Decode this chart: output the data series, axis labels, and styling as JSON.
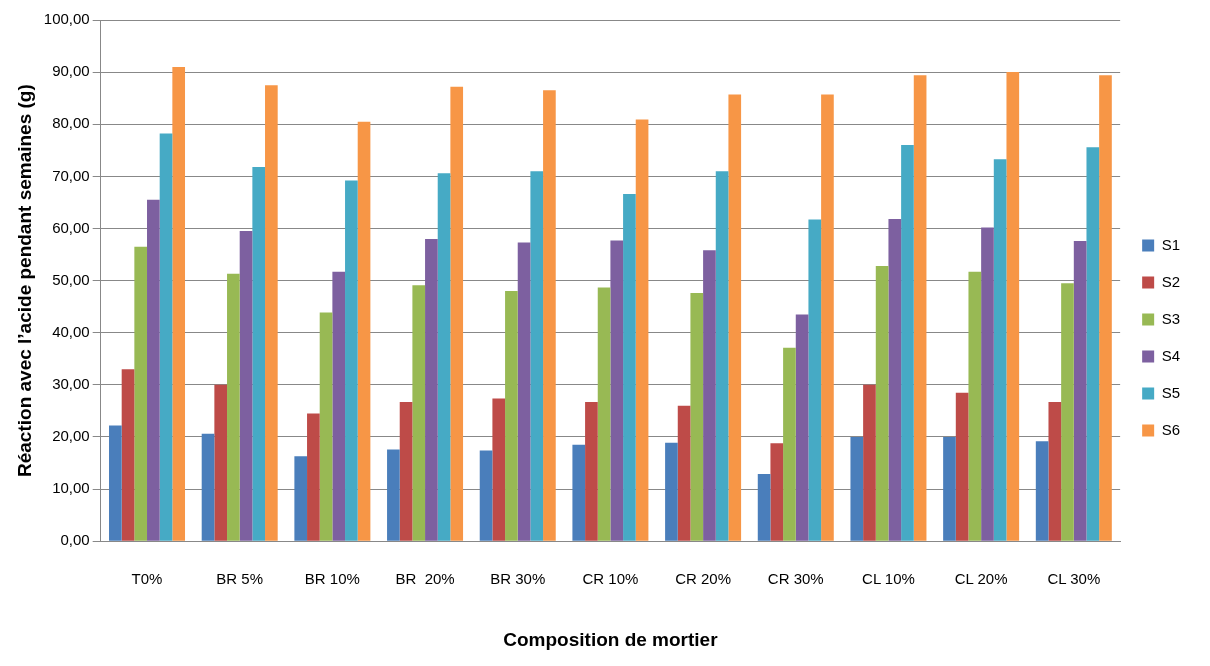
{
  "chart_data": {
    "type": "bar",
    "xlabel": "Composition de mortier",
    "ylabel": "Réaction avec l’acide pendant semaines (g)",
    "categories": [
      "T0%",
      "BR 5%",
      "BR 10%",
      "BR  20%",
      "BR 30%",
      "CR 10%",
      "CR 20%",
      "CR 30%",
      "CL 10%",
      "CL 20%",
      "CL 30%"
    ],
    "series": [
      {
        "name": "S1",
        "color": "#4a7ebb",
        "values": [
          22.2,
          20.6,
          16.3,
          17.6,
          17.4,
          18.5,
          18.9,
          12.9,
          20,
          20,
          19.2
        ]
      },
      {
        "name": "S2",
        "color": "#be4b48",
        "values": [
          33,
          30,
          24.5,
          26.7,
          27.4,
          26.7,
          26,
          18.8,
          30,
          28.5,
          26.7
        ]
      },
      {
        "name": "S3",
        "color": "#98b954",
        "values": [
          56.5,
          51.3,
          43.9,
          49.1,
          48,
          48.7,
          47.6,
          37.1,
          52.8,
          51.7,
          49.5
        ]
      },
      {
        "name": "S4",
        "color": "#7d60a0",
        "values": [
          65.5,
          59.5,
          51.7,
          58,
          57.3,
          57.7,
          55.8,
          43.5,
          61.8,
          60.2,
          57.6
        ]
      },
      {
        "name": "S5",
        "color": "#46aac5",
        "values": [
          78.2,
          71.8,
          69.2,
          70.6,
          71,
          66.6,
          71,
          61.7,
          76,
          73.3,
          75.6
        ]
      },
      {
        "name": "S6",
        "color": "#f79646",
        "values": [
          91,
          87.5,
          80.5,
          87.2,
          86.5,
          80.9,
          85.7,
          85.7,
          89.4,
          90,
          89.4
        ]
      }
    ],
    "ylim": [
      0,
      100
    ],
    "yticks": [
      {
        "value": 0,
        "label": "0,00"
      },
      {
        "value": 10,
        "label": "10,00"
      },
      {
        "value": 20,
        "label": "20,00"
      },
      {
        "value": 30,
        "label": "30,00"
      },
      {
        "value": 40,
        "label": "40,00"
      },
      {
        "value": 50,
        "label": "50,00"
      },
      {
        "value": 60,
        "label": "60,00"
      },
      {
        "value": 70,
        "label": "70,00"
      },
      {
        "value": 80,
        "label": "80,00"
      },
      {
        "value": 90,
        "label": "90,00"
      },
      {
        "value": 100,
        "label": "100,00"
      }
    ],
    "grid": "y",
    "legend": "right"
  }
}
